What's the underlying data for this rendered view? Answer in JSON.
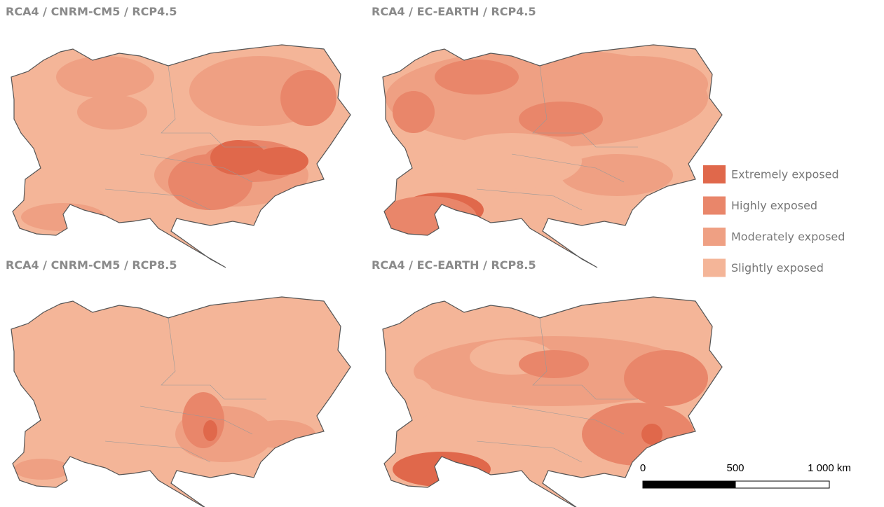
{
  "panels": [
    {
      "title": "RCA4 / CNRM-CM5 / RCP4.5"
    },
    {
      "title": "RCA4 / EC-EARTH / RCP4.5"
    },
    {
      "title": "RCA4 / CNRM-CM5 / RCP8.5"
    },
    {
      "title": "RCA4 / EC-EARTH / RCP8.5"
    }
  ],
  "legend": {
    "items": [
      {
        "label": "Extremely exposed",
        "color": "#e0684b"
      },
      {
        "label": "Highly exposed",
        "color": "#e9866a"
      },
      {
        "label": "Moderately exposed",
        "color": "#efa083"
      },
      {
        "label": "Slightly exposed",
        "color": "#f4b598"
      }
    ]
  },
  "scale_bar": {
    "labels": [
      "0",
      "500",
      "1 000 km"
    ]
  }
}
